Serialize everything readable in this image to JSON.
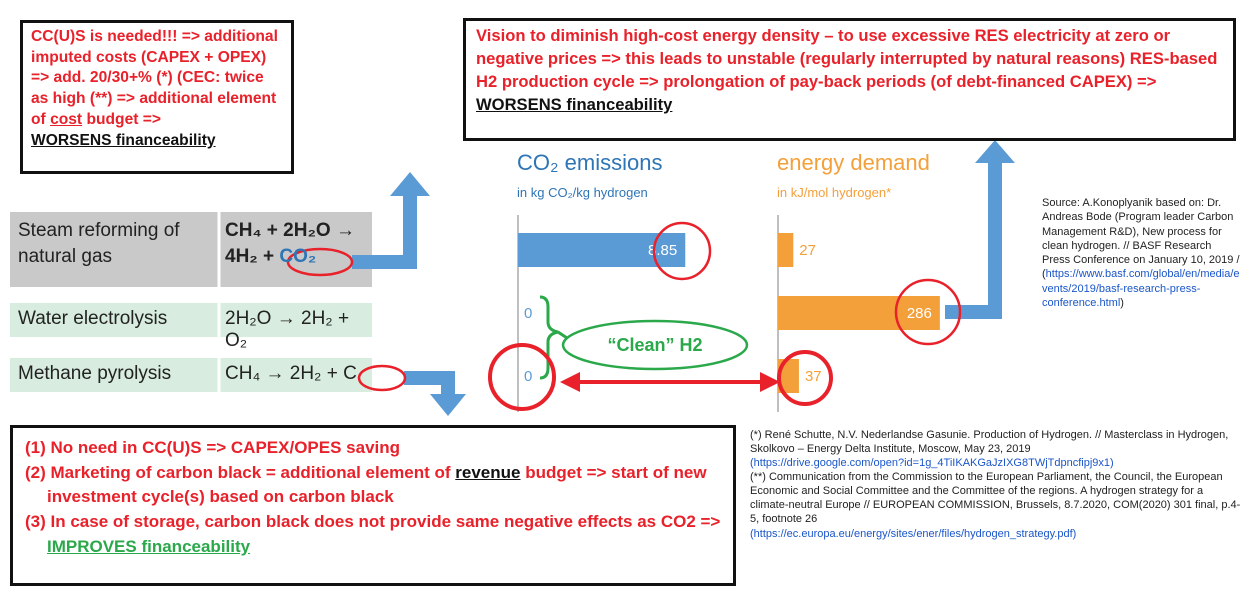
{
  "top_left_box": [
    "CC(U)S is needed!!! => additional imputed costs (CAPEX + OPEX) => add. 20/30+% (*) (CEC: twice as high (**) => additional element of ",
    "cost",
    " budget =>",
    "WORSENS financeability"
  ],
  "top_right_box": [
    "Vision to diminish high-cost energy density – to use excessive RES electricity at zero or negative prices => this leads to unstable (regularly interrupted by natural reasons) RES-based H2 production cycle => prolongation of pay-back periods (of debt-financed CAPEX) => ",
    "WORSENS financeability"
  ],
  "processes": [
    {
      "name": "Steam reforming of natural gas",
      "formula": [
        "CH₄ + 2H₂O →",
        "4H₂ +",
        "CO₂"
      ]
    },
    {
      "name": "Water electrolysis",
      "formula": [
        "2H₂O → 2H₂ + O₂"
      ]
    },
    {
      "name": "Methane pyrolysis",
      "formula": [
        "CH₄ → 2H₂ +",
        "C"
      ]
    }
  ],
  "co2": {
    "title": "CO₂ emissions",
    "subtitle": "in kg CO₂/kg hydrogen",
    "values": [
      8.85,
      0,
      0
    ],
    "color": "#5b9bd5"
  },
  "energy": {
    "title": "energy demand",
    "subtitle": "in kJ/mol hydrogen*",
    "values": [
      27,
      286,
      37
    ],
    "color": "#f4a03a"
  },
  "clean_label": "“Clean” H2",
  "bottom_box": [
    [
      "(1) No need in CC(U)S => CAPEX/OPES saving"
    ],
    [
      "(2) Marketing of carbon black = additional element of ",
      "revenue",
      " budget => start of new investment cycle(s) based on carbon black"
    ],
    [
      "(3) In case of storage, carbon black does not provide same negative effects as CO2 => ",
      "IMPROVES financeability"
    ]
  ],
  "source": [
    "Source: A.Konoplyanik based on: Dr. Andreas Bode (Program leader Carbon Management R&D), New process for clean hydrogen. // BASF Research Press Conference on January 10, 2019 / (",
    "https://www.basf.com/global/en/media/events/2019/basf-research-press-conference.html",
    ")"
  ],
  "footnotes": [
    "(*) René Schutte, N.V. Nederlandse Gasunie. Production of Hydrogen. // Masterclass in Hydrogen, Skolkovo – Energy Delta Institute, Moscow, May 23, 2019",
    "(https://drive.google.com/open?id=1g_4TiIKAKGaJzIXG8TWjTdpncfipj9x1)",
    "(**) Communication from the Commission to the European Parliament, the Council, the European Economic and Social Committee and the Committee of the regions. A hydrogen strategy for a climate-neutral Europe // EUROPEAN COMMISSION, Brussels, 8.7.2020, COM(2020) 301 final, p.4-5, footnote 26",
    "(https://ec.europa.eu/energy/sites/ener/files/hydrogen_strategy.pdf)"
  ]
}
